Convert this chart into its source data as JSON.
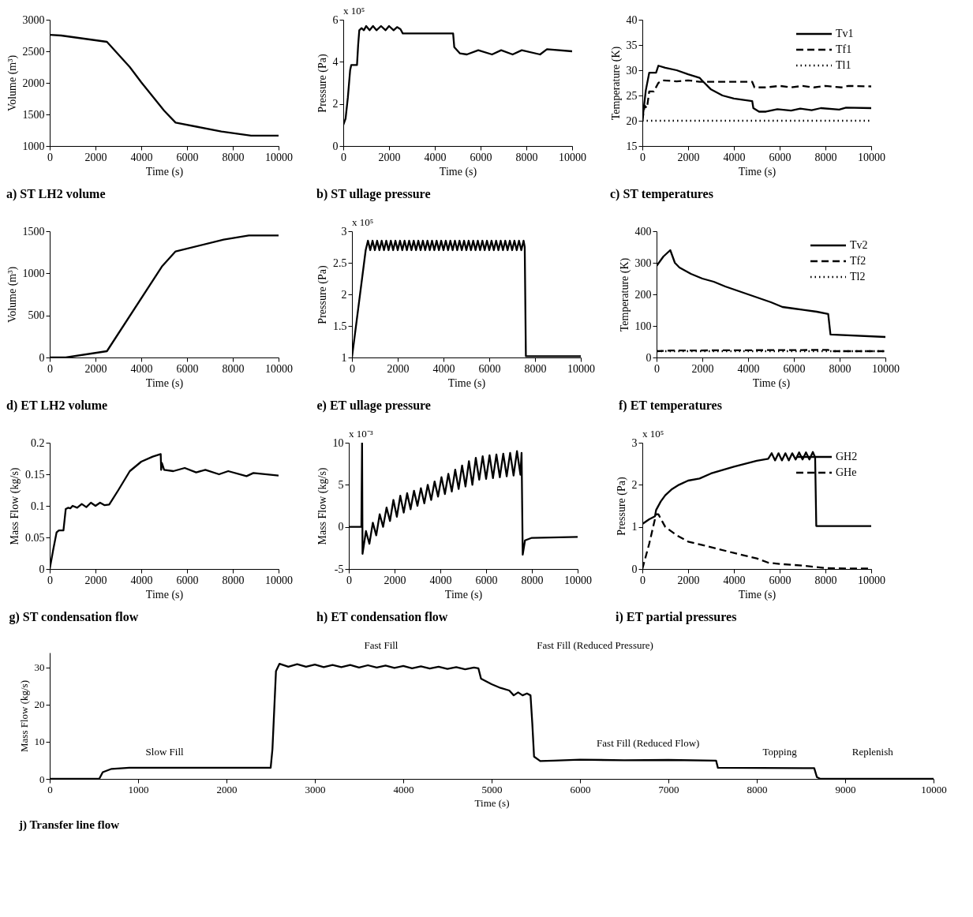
{
  "chart_data": [
    {
      "type": "line",
      "title": "a) ST LH2 volume",
      "xlabel": "Time (s)",
      "ylabel": "Volume (m³)",
      "xlim": [
        0,
        10000
      ],
      "xticks": [
        0,
        2000,
        4000,
        6000,
        8000,
        10000
      ],
      "ylim": [
        1000,
        3000
      ],
      "yticks": [
        1000,
        1500,
        2000,
        2500,
        3000
      ],
      "grid": false,
      "legend": false,
      "series": [
        {
          "color": "#000000",
          "line_style": "solid",
          "x": [
            0,
            500,
            2500,
            3500,
            4000,
            5000,
            5500,
            6500,
            7500,
            8800,
            10000
          ],
          "values": [
            2760,
            2750,
            2650,
            2250,
            2010,
            1560,
            1370,
            1300,
            1230,
            1165,
            1165
          ]
        }
      ]
    },
    {
      "type": "line",
      "title": "b) ST ullage pressure",
      "xlabel": "Time (s)",
      "ylabel": "Pressure (Pa)",
      "annotations": [
        "x 10⁵"
      ],
      "xlim": [
        0,
        10000
      ],
      "xticks": [
        0,
        2000,
        4000,
        6000,
        8000,
        10000
      ],
      "ylim": [
        0,
        6
      ],
      "yticks": [
        0,
        2,
        4,
        6
      ],
      "grid": false,
      "legend": false,
      "series": [
        {
          "color": "#000000",
          "line_style": "solid",
          "x": [
            0,
            100,
            200,
            300,
            350,
            500,
            600,
            650,
            700,
            800,
            900,
            1000,
            1150,
            1300,
            1450,
            1650,
            1850,
            2000,
            2200,
            2350,
            2500,
            2600,
            4800,
            4850,
            5100,
            5400,
            5900,
            6500,
            6900,
            7400,
            7800,
            8600,
            8900,
            10000
          ],
          "values": [
            1.0,
            1.3,
            2.3,
            3.6,
            3.85,
            3.85,
            3.85,
            4.8,
            5.5,
            5.6,
            5.5,
            5.7,
            5.5,
            5.7,
            5.5,
            5.7,
            5.5,
            5.7,
            5.5,
            5.65,
            5.55,
            5.35,
            5.35,
            4.7,
            4.4,
            4.35,
            4.55,
            4.35,
            4.55,
            4.35,
            4.55,
            4.35,
            4.6,
            4.5
          ]
        }
      ]
    },
    {
      "type": "line",
      "title": "c) ST temperatures",
      "xlabel": "Time (s)",
      "ylabel": "Temperature (K)",
      "xlim": [
        0,
        10000
      ],
      "xticks": [
        0,
        2000,
        4000,
        6000,
        8000,
        10000
      ],
      "ylim": [
        15,
        40
      ],
      "yticks": [
        15,
        20,
        25,
        30,
        35,
        40
      ],
      "grid": false,
      "legend": "top right",
      "series": [
        {
          "name": "Tv1",
          "color": "#000000",
          "line_style": "solid",
          "x": [
            0,
            150,
            300,
            500,
            600,
            700,
            1000,
            1500,
            2000,
            2500,
            2600,
            3000,
            3500,
            4000,
            4800,
            4850,
            5100,
            5400,
            5900,
            6500,
            6900,
            7400,
            7800,
            8600,
            8900,
            10000
          ],
          "values": [
            20,
            26,
            29.5,
            29.5,
            29.5,
            30.9,
            30.5,
            30,
            29.2,
            28.5,
            28,
            26.2,
            25,
            24.4,
            23.9,
            22.5,
            21.8,
            21.8,
            22.3,
            22,
            22.4,
            22.1,
            22.5,
            22.2,
            22.6,
            22.5
          ]
        },
        {
          "name": "Tf1",
          "color": "#000000",
          "line_style": "dashed",
          "x": [
            0,
            100,
            200,
            300,
            500,
            700,
            900,
            1500,
            2000,
            2500,
            4800,
            4900,
            5400,
            6000,
            6500,
            7000,
            7500,
            8000,
            8700,
            9000,
            10000
          ],
          "values": [
            20,
            23,
            22.5,
            25.8,
            25.8,
            27.5,
            28,
            27.8,
            28,
            27.7,
            27.7,
            26.6,
            26.6,
            26.9,
            26.6,
            26.9,
            26.6,
            26.9,
            26.6,
            26.9,
            26.8
          ]
        },
        {
          "name": "Tl1",
          "color": "#000000",
          "line_style": "dotted",
          "x": [
            0,
            10000
          ],
          "values": [
            20,
            20
          ]
        }
      ]
    },
    {
      "type": "line",
      "title": "d) ET LH2 volume",
      "xlabel": "Time (s)",
      "ylabel": "Volume (m³)",
      "xlim": [
        0,
        10000
      ],
      "xticks": [
        0,
        2000,
        4000,
        6000,
        8000,
        10000
      ],
      "ylim": [
        0,
        1500
      ],
      "yticks": [
        0,
        500,
        1000,
        1500
      ],
      "grid": false,
      "legend": false,
      "series": [
        {
          "color": "#000000",
          "line_style": "solid",
          "x": [
            0,
            700,
            2500,
            4900,
            5500,
            7600,
            8700,
            10000
          ],
          "values": [
            0,
            0,
            75,
            1080,
            1260,
            1400,
            1450,
            1450
          ]
        }
      ]
    },
    {
      "type": "line",
      "title": "e) ET ullage pressure",
      "xlabel": "Time (s)",
      "ylabel": "Pressure (Pa)",
      "annotations": [
        "x 10⁵"
      ],
      "xlim": [
        0,
        10000
      ],
      "xticks": [
        0,
        2000,
        4000,
        6000,
        8000,
        10000
      ],
      "ylim": [
        1,
        3
      ],
      "yticks": [
        1,
        1.5,
        2,
        2.5,
        3
      ],
      "grid": false,
      "legend": false,
      "series": [
        {
          "color": "#000000",
          "line_style": "solid",
          "x": [
            0,
            600,
            700,
            800,
            900,
            1000,
            1100,
            1200,
            1300,
            1400,
            1500,
            1600,
            1700,
            1800,
            1900,
            2000,
            2100,
            2200,
            2300,
            2400,
            2500,
            2600,
            2700,
            2800,
            2900,
            3000,
            3100,
            3200,
            3300,
            3400,
            3500,
            3600,
            3700,
            3800,
            3900,
            4000,
            4100,
            4200,
            4300,
            4400,
            4500,
            4600,
            4700,
            4800,
            4900,
            5000,
            5100,
            5200,
            5300,
            5400,
            5500,
            5600,
            5700,
            5800,
            5900,
            6000,
            6100,
            6200,
            6300,
            6400,
            6500,
            6600,
            6700,
            6800,
            6900,
            7000,
            7100,
            7200,
            7300,
            7400,
            7500,
            7550,
            7600,
            10000
          ],
          "values": [
            1,
            2.7,
            2.85,
            2.7,
            2.85,
            2.7,
            2.85,
            2.7,
            2.85,
            2.7,
            2.85,
            2.7,
            2.85,
            2.7,
            2.85,
            2.7,
            2.85,
            2.7,
            2.85,
            2.7,
            2.85,
            2.7,
            2.85,
            2.7,
            2.85,
            2.7,
            2.85,
            2.7,
            2.85,
            2.7,
            2.85,
            2.7,
            2.85,
            2.7,
            2.85,
            2.7,
            2.85,
            2.7,
            2.85,
            2.7,
            2.85,
            2.7,
            2.85,
            2.7,
            2.85,
            2.7,
            2.85,
            2.7,
            2.85,
            2.7,
            2.85,
            2.7,
            2.85,
            2.7,
            2.85,
            2.7,
            2.85,
            2.7,
            2.85,
            2.7,
            2.85,
            2.7,
            2.85,
            2.7,
            2.85,
            2.7,
            2.85,
            2.7,
            2.85,
            2.7,
            2.85,
            2.75,
            1.02,
            1.02
          ]
        }
      ]
    },
    {
      "type": "line",
      "title": "f) ET temperatures",
      "xlabel": "Time (s)",
      "ylabel": "Temperature (K)",
      "xlim": [
        0,
        10000
      ],
      "xticks": [
        0,
        2000,
        4000,
        6000,
        8000,
        10000
      ],
      "ylim": [
        0,
        400
      ],
      "yticks": [
        0,
        100,
        200,
        300,
        400
      ],
      "grid": false,
      "legend": "top right",
      "series": [
        {
          "name": "Tv2",
          "color": "#000000",
          "line_style": "solid",
          "x": [
            0,
            300,
            600,
            800,
            1000,
            1500,
            2000,
            2500,
            3000,
            4000,
            5000,
            5500,
            6000,
            7000,
            7500,
            7600,
            10000
          ],
          "values": [
            290,
            320,
            340,
            300,
            285,
            265,
            250,
            240,
            225,
            200,
            175,
            160,
            155,
            145,
            138,
            73,
            65
          ]
        },
        {
          "name": "Tf2",
          "color": "#000000",
          "line_style": "dashed",
          "x": [
            0,
            600,
            7500,
            7600,
            10000
          ],
          "values": [
            20,
            22,
            24,
            20,
            20
          ]
        },
        {
          "name": "Tl2",
          "color": "#000000",
          "line_style": "dotted",
          "x": [
            0,
            10000
          ],
          "values": [
            20,
            20
          ]
        }
      ]
    },
    {
      "type": "line",
      "title": "g) ST condensation flow",
      "xlabel": "Time (s)",
      "ylabel": "Mass Flow (kg/s)",
      "xlim": [
        0,
        10000
      ],
      "xticks": [
        0,
        2000,
        4000,
        6000,
        8000,
        10000
      ],
      "ylim": [
        0,
        0.2
      ],
      "yticks": [
        0,
        0.05,
        0.1,
        0.15,
        0.2
      ],
      "grid": false,
      "legend": false,
      "series": [
        {
          "color": "#000000",
          "line_style": "solid",
          "x": [
            0,
            150,
            300,
            400,
            600,
            700,
            800,
            900,
            1000,
            1200,
            1400,
            1600,
            1800,
            2000,
            2200,
            2400,
            2600,
            3000,
            3500,
            4000,
            4500,
            4850,
            4870,
            4900,
            5000,
            5400,
            5900,
            6400,
            6800,
            7400,
            7800,
            8600,
            8900,
            10000
          ],
          "values": [
            0,
            0.03,
            0.058,
            0.061,
            0.061,
            0.095,
            0.097,
            0.096,
            0.1,
            0.097,
            0.103,
            0.098,
            0.105,
            0.1,
            0.105,
            0.101,
            0.102,
            0.125,
            0.155,
            0.17,
            0.178,
            0.182,
            0.157,
            0.168,
            0.157,
            0.155,
            0.16,
            0.153,
            0.157,
            0.15,
            0.155,
            0.147,
            0.152,
            0.148
          ]
        }
      ]
    },
    {
      "type": "line",
      "title": "h) ET condensation flow",
      "xlabel": "Time (s)",
      "ylabel": "Mass Flow (kg/s)",
      "annotations": [
        "x 10⁻³"
      ],
      "xlim": [
        0,
        10000
      ],
      "xticks": [
        0,
        2000,
        4000,
        6000,
        8000,
        10000
      ],
      "ylim": [
        -5,
        10
      ],
      "yticks": [
        -5,
        0,
        5,
        10
      ],
      "grid": false,
      "legend": false,
      "series": [
        {
          "color": "#000000",
          "line_style": "solid",
          "x": [
            0,
            550,
            580,
            600,
            750,
            900,
            1050,
            1200,
            1350,
            1500,
            1650,
            1800,
            1950,
            2100,
            2250,
            2400,
            2550,
            2700,
            2850,
            3000,
            3150,
            3300,
            3450,
            3600,
            3750,
            3900,
            4050,
            4200,
            4350,
            4500,
            4650,
            4800,
            4950,
            5100,
            5250,
            5400,
            5550,
            5700,
            5850,
            6000,
            6150,
            6300,
            6450,
            6600,
            6750,
            6900,
            7050,
            7200,
            7350,
            7500,
            7550,
            7600,
            7700,
            8000,
            10000
          ],
          "values": [
            0,
            0,
            10,
            -3.2,
            -0.5,
            -2,
            0.5,
            -1,
            1.5,
            0,
            2.3,
            0.7,
            3.2,
            1.2,
            3.7,
            1.7,
            4,
            2.1,
            4.3,
            2.5,
            4.6,
            2.8,
            5,
            3.2,
            5.4,
            3.6,
            5.9,
            3.9,
            6.3,
            4.2,
            6.8,
            4.5,
            7.3,
            4.8,
            7.8,
            5,
            8.2,
            5.6,
            8.4,
            5.7,
            8.5,
            5.8,
            8.6,
            5.9,
            8.7,
            6,
            8.8,
            6.1,
            9,
            6.2,
            8.8,
            -3.3,
            -1.6,
            -1.3,
            -1.2
          ]
        }
      ]
    },
    {
      "type": "line",
      "title": "i) ET partial pressures",
      "xlabel": "Time (s)",
      "ylabel": "Pressure (Pa)",
      "annotations": [
        "x 10⁵"
      ],
      "xlim": [
        0,
        10000
      ],
      "xticks": [
        0,
        2000,
        4000,
        6000,
        8000,
        10000
      ],
      "ylim": [
        0,
        3
      ],
      "yticks": [
        0,
        1,
        2,
        3
      ],
      "grid": false,
      "legend": "top right",
      "series": [
        {
          "name": "GH2",
          "color": "#000000",
          "line_style": "solid",
          "x": [
            0,
            300,
            550,
            600,
            800,
            1000,
            1300,
            1600,
            2000,
            2500,
            3000,
            3500,
            4000,
            4500,
            5000,
            5500,
            5650,
            5800,
            5950,
            6100,
            6250,
            6400,
            6550,
            6700,
            6850,
            7000,
            7150,
            7300,
            7450,
            7550,
            7600,
            10000
          ],
          "values": [
            1.07,
            1.18,
            1.25,
            1.4,
            1.6,
            1.75,
            1.9,
            2.0,
            2.1,
            2.15,
            2.27,
            2.35,
            2.43,
            2.5,
            2.57,
            2.62,
            2.75,
            2.58,
            2.75,
            2.58,
            2.75,
            2.58,
            2.75,
            2.6,
            2.77,
            2.6,
            2.77,
            2.6,
            2.78,
            2.65,
            1.02,
            1.02
          ]
        },
        {
          "name": "GHe",
          "color": "#000000",
          "line_style": "dashed",
          "x": [
            0,
            300,
            600,
            700,
            1000,
            1500,
            2000,
            3000,
            4000,
            5000,
            5500,
            6000,
            7000,
            7500,
            8000,
            9000,
            10000
          ],
          "values": [
            0,
            0.6,
            1.3,
            1.3,
            1.0,
            0.8,
            0.65,
            0.52,
            0.38,
            0.25,
            0.15,
            0.12,
            0.08,
            0.05,
            0.02,
            0.01,
            0.01
          ]
        }
      ]
    },
    {
      "type": "line",
      "title": "j) Transfer line flow",
      "xlabel": "Time (s)",
      "ylabel": "Mass Flow (kg/s)",
      "xlim": [
        0,
        10000
      ],
      "xticks": [
        0,
        1000,
        2000,
        3000,
        4000,
        5000,
        6000,
        7000,
        8000,
        9000,
        10000
      ],
      "ylim": [
        0,
        34
      ],
      "yticks": [
        0,
        10,
        20,
        30
      ],
      "grid": false,
      "legend": false,
      "annotations": [
        "Slow Fill",
        "Fast Fill",
        "Fast Fill (Reduced Pressure)",
        "Fast Fill (Reduced Flow)",
        "Topping",
        "Replenish"
      ],
      "series": [
        {
          "color": "#000000",
          "line_style": "solid",
          "x": [
            0,
            560,
            600,
            700,
            900,
            2500,
            2520,
            2560,
            2600,
            2700,
            2800,
            2900,
            3000,
            3100,
            3200,
            3300,
            3400,
            3500,
            3600,
            3700,
            3800,
            3900,
            4000,
            4100,
            4200,
            4300,
            4400,
            4500,
            4600,
            4700,
            4800,
            4850,
            4880,
            5000,
            5100,
            5200,
            5250,
            5300,
            5350,
            5400,
            5440,
            5460,
            5480,
            5550,
            5700,
            6000,
            6500,
            7000,
            7540,
            7560,
            8650,
            8680,
            8720,
            10000
          ],
          "values": [
            0,
            0,
            1.8,
            2.7,
            3,
            3,
            8,
            29,
            31,
            30.2,
            30.9,
            30.2,
            30.8,
            30.1,
            30.7,
            30.1,
            30.7,
            30.0,
            30.6,
            30.0,
            30.5,
            29.9,
            30.4,
            29.8,
            30.3,
            29.7,
            30.2,
            29.6,
            30.1,
            29.5,
            30.0,
            29.8,
            27,
            25.5,
            24.5,
            23.8,
            22.5,
            23.3,
            22.5,
            23,
            22.5,
            15,
            6,
            4.8,
            4.9,
            5.2,
            5,
            5.1,
            4.9,
            3,
            2.9,
            0.5,
            0,
            0
          ]
        }
      ]
    }
  ]
}
